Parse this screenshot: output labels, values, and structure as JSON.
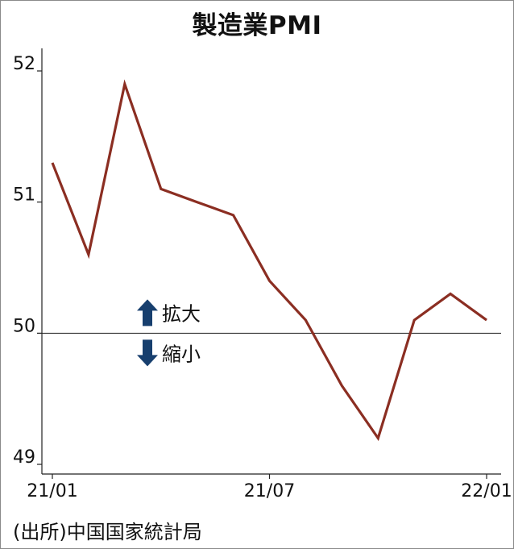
{
  "title": "製造業PMI",
  "source": "(出所)中国国家統計局",
  "colors": {
    "line": "#8b2e22",
    "arrow": "#173f6e",
    "axis": "#222222",
    "text": "#111111"
  },
  "annotations": {
    "up_label": "拡大",
    "down_label": "縮小",
    "up_icon": "up-arrow-icon",
    "down_icon": "down-arrow-icon"
  },
  "chart_data": {
    "type": "line",
    "title": "製造業PMI",
    "xlabel": "",
    "ylabel": "",
    "ylim": [
      49,
      52
    ],
    "yticks": [
      "49",
      "50",
      "51",
      "52"
    ],
    "xticks": [
      "21/01",
      "21/07",
      "22/01"
    ],
    "reference_line": 50,
    "grid": false,
    "series": [
      {
        "x": [
          "21/01",
          "21/02",
          "21/03",
          "21/04",
          "21/05",
          "21/06",
          "21/07",
          "21/08",
          "21/09",
          "21/10",
          "21/11",
          "21/12",
          "22/01"
        ],
        "values": [
          51.3,
          50.6,
          51.9,
          51.1,
          51.0,
          50.9,
          50.4,
          50.1,
          49.6,
          49.2,
          50.1,
          50.3,
          50.1
        ]
      }
    ]
  }
}
